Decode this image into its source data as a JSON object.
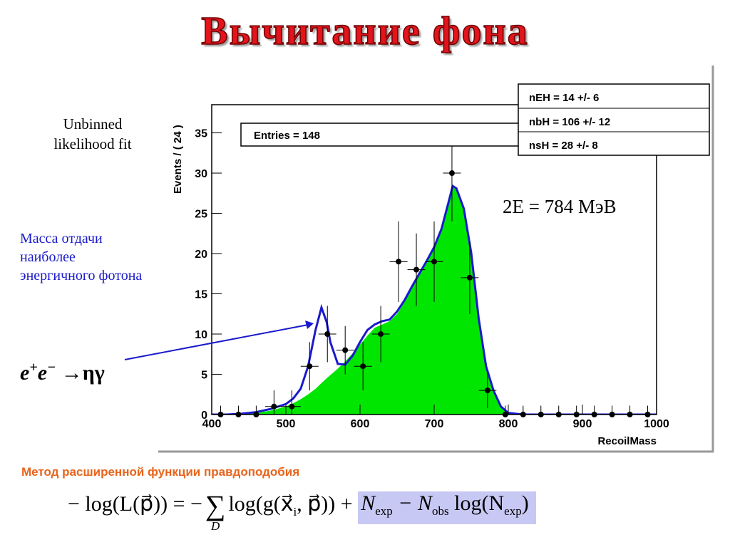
{
  "title": "Вычитание фона",
  "fit_note": [
    "Unbinned",
    "likelihood fit"
  ],
  "mass_note": [
    "Масса отдачи",
    "наиболее",
    "энергичного фотона"
  ],
  "energy": "2E = 784 МэВ",
  "reaction": {
    "e1": "e",
    "sup1": "+",
    "e2": "e",
    "sup2": "−",
    "rest": "→ηγ"
  },
  "method": "Метод расширенной функции правдоподобия",
  "formula": {
    "lhs": "− log(L(p⃗)) = −",
    "sum": "∑",
    "sum_sub": "D",
    "mid": "log(g(x⃗",
    "mid_sub": "i",
    "mid_end": ", p⃗)) +",
    "n1": "N",
    "n1_sub": "exp",
    "n2": " − N",
    "n2_sub": "obs",
    "n3": " log(N",
    "n3_sub": "exp",
    "end": ")"
  },
  "chart_data": {
    "type": "scatter",
    "x_label": "RecoilMass",
    "y_label": "Events / ( 24 )",
    "entries": "Entries =  148",
    "stats": [
      "nEH =  14 +/- 6",
      "nbH =  106 +/- 12",
      "nsH =  28 +/- 8"
    ],
    "xlim": [
      400,
      1000
    ],
    "ylim": [
      0,
      38.5
    ],
    "xticks": [
      400,
      500,
      600,
      700,
      800,
      900,
      1000
    ],
    "yticks": [
      0,
      5,
      10,
      15,
      20,
      25,
      30,
      35
    ],
    "color": "#000000",
    "x": [
      412,
      436,
      460,
      484,
      508,
      532,
      556,
      580,
      604,
      628,
      652,
      676,
      700,
      724,
      748,
      772,
      796,
      820,
      844,
      868,
      892,
      916,
      940,
      964,
      988
    ],
    "values": [
      0,
      0,
      0,
      1,
      1,
      6,
      10,
      8,
      6,
      10,
      19,
      18,
      19,
      30,
      17,
      3,
      0,
      0,
      0,
      0,
      0,
      0,
      0,
      0,
      0
    ],
    "yerr": [
      1.1,
      1.1,
      1.1,
      2,
      2,
      3,
      3.5,
      3,
      3,
      3.5,
      5,
      4.5,
      5,
      6,
      4.5,
      2.2,
      1.1,
      1.1,
      1.1,
      1.1,
      1.1,
      1.1,
      1.1,
      1.1,
      1.1
    ],
    "xerr": 12,
    "background": {
      "color": "#00e600",
      "x": [
        400,
        420,
        440,
        460,
        480,
        500,
        510,
        520,
        530,
        540,
        548,
        555,
        560,
        570,
        580,
        590,
        600,
        610,
        620,
        630,
        640,
        650,
        660,
        670,
        680,
        690,
        700,
        710,
        720,
        725,
        730,
        740,
        750,
        760,
        770,
        780,
        790,
        800,
        820,
        1000
      ],
      "values": [
        0,
        0,
        0.1,
        0.2,
        0.5,
        1,
        1.4,
        1.9,
        2.5,
        3.2,
        3.9,
        4.5,
        4.9,
        5.7,
        6.6,
        7.6,
        8.7,
        9.8,
        10.8,
        11.2,
        11.6,
        12.5,
        14,
        15.7,
        17.3,
        19,
        20.7,
        23,
        26.5,
        28.2,
        28,
        25.5,
        20,
        12,
        6,
        3,
        1,
        0.2,
        0,
        0
      ]
    },
    "fit": {
      "color": "#1a1acc",
      "x": [
        400,
        420,
        440,
        460,
        480,
        500,
        510,
        520,
        530,
        540,
        548,
        555,
        560,
        570,
        580,
        590,
        600,
        610,
        620,
        630,
        640,
        650,
        660,
        670,
        680,
        690,
        700,
        710,
        720,
        725,
        730,
        740,
        750,
        760,
        770,
        780,
        790,
        800,
        820,
        1000
      ],
      "values": [
        0,
        0,
        0.1,
        0.3,
        0.7,
        1.3,
        2,
        3.2,
        6,
        10.5,
        13.3,
        11.5,
        9,
        6.3,
        6.2,
        7.3,
        9,
        10.5,
        11.2,
        11.6,
        11.8,
        12.8,
        14.2,
        15.9,
        17.5,
        19.1,
        20.8,
        23.1,
        26.6,
        28.4,
        28.1,
        25.6,
        20.1,
        12,
        6,
        3,
        1,
        0.2,
        0,
        0
      ]
    }
  }
}
